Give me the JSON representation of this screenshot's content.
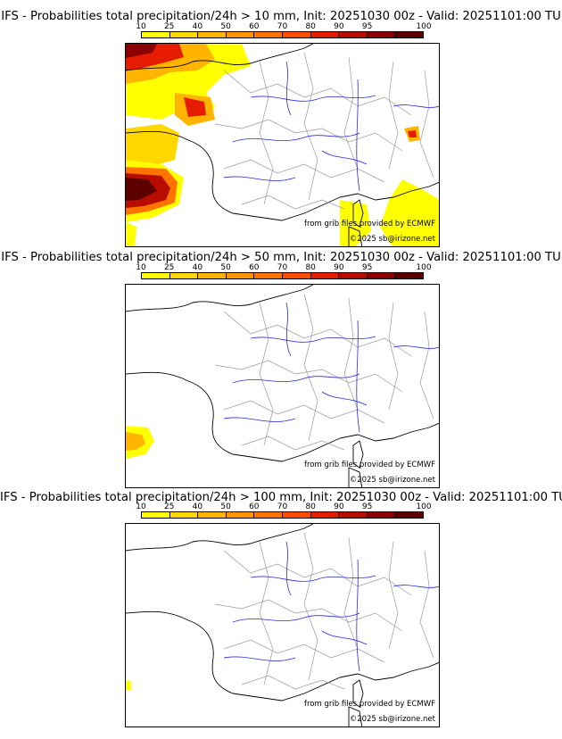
{
  "colorbar": {
    "ticks": [
      "10",
      "25",
      "40",
      "50",
      "60",
      "70",
      "80",
      "90",
      "95",
      "100"
    ],
    "colors": [
      "#ffff00",
      "#ffd800",
      "#ffb400",
      "#ff9400",
      "#ff7400",
      "#ff4c00",
      "#e61c00",
      "#b90c00",
      "#8b0000",
      "#5c0000"
    ]
  },
  "colors": {
    "river": "#2a2ae0",
    "border": "#9a9a9a",
    "coast": "#000000"
  },
  "panels": [
    {
      "title": "IFS - Probabilities total precipitation/24h > 10 mm, Init: 20251030 00z - Valid: 20251101:00 TU",
      "credit_source": "from grib files provided by ECMWF",
      "credit_copyright": "©2025 sb@irizone.net"
    },
    {
      "title": "IFS - Probabilities total precipitation/24h > 50 mm, Init: 20251030 00z - Valid: 20251101:00 TU",
      "credit_source": "from grib files provided by ECMWF",
      "credit_copyright": "©2025 sb@irizone.net"
    },
    {
      "title": "IFS - Probabilities total precipitation/24h > 100 mm, Init: 20251030 00z - Valid: 20251101:00 TU",
      "credit_source": "from grib files provided by ECMWF",
      "credit_copyright": "©2025 sb@irizone.net"
    }
  ]
}
